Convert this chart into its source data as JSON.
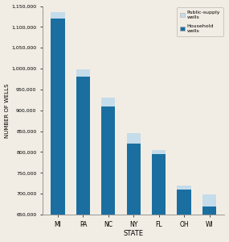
{
  "states": [
    "MI",
    "PA",
    "NC",
    "NY",
    "FL",
    "OH",
    "WI"
  ],
  "household_wells": [
    1120000,
    980000,
    910000,
    820000,
    795000,
    710000,
    670000
  ],
  "public_supply_wells": [
    15000,
    18000,
    20000,
    25000,
    10000,
    10000,
    28000
  ],
  "bar_color_household": "#1a6fa0",
  "bar_color_public": "#c5dcea",
  "ylabel": "NUMBER OF WELLS",
  "xlabel": "STATE",
  "ylim_min": 650000,
  "ylim_max": 1150000,
  "yticks": [
    650000,
    700000,
    750000,
    800000,
    850000,
    900000,
    950000,
    1000000,
    1050000,
    1100000,
    1150000
  ],
  "ytick_labels": [
    "650,000",
    "700,000",
    "750,000",
    "800,000",
    "850,000",
    "900,000",
    "950,000",
    "1,000,000",
    "1,050,000",
    "1,100,000",
    "1,150,000"
  ],
  "pa_color": "#1a7abf",
  "legend_public_label": "Public-supply\nwells",
  "legend_household_label": "Household\nwells",
  "background_color": "#f2ede4"
}
